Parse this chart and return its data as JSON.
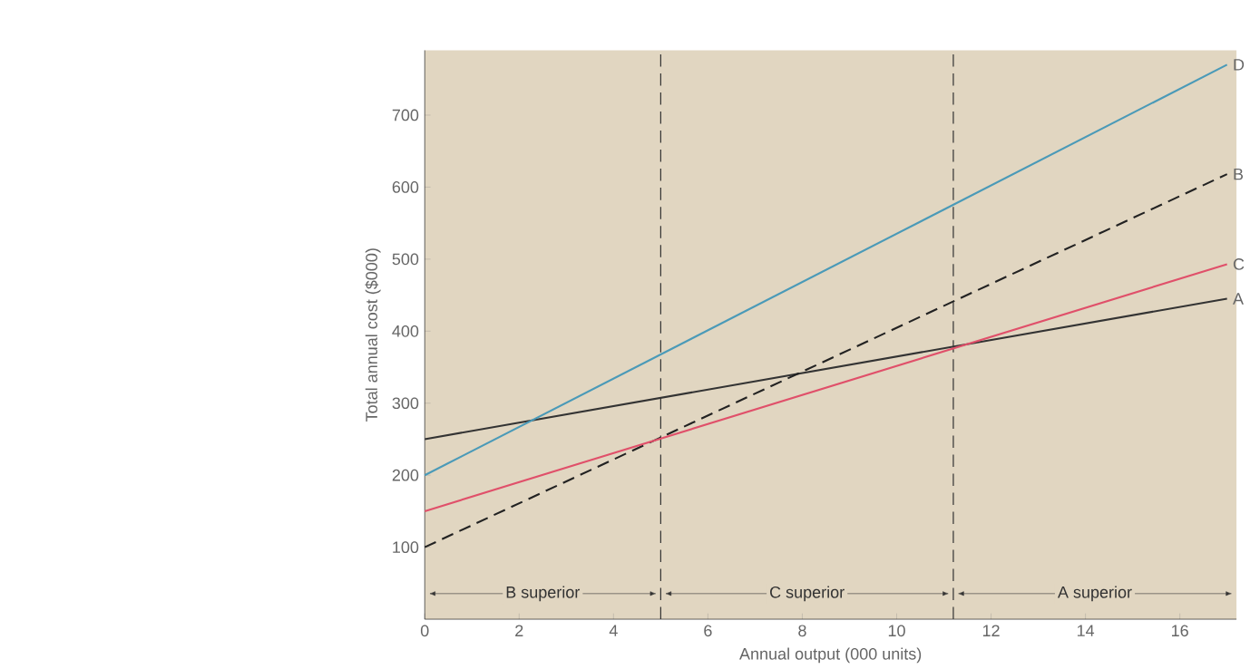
{
  "chart_data": {
    "type": "line",
    "xlabel": "Annual output (000 units)",
    "ylabel": "Total annual cost ($000)",
    "x": [
      0,
      17
    ],
    "series": [
      {
        "name": "A",
        "color": "#333333",
        "values": [
          250,
          445
        ],
        "line_style": "solid"
      },
      {
        "name": "B",
        "color": "#222222",
        "values": [
          100,
          618
        ],
        "line_style": "dashed"
      },
      {
        "name": "C",
        "color": "#e0506a",
        "values": [
          150,
          493
        ],
        "line_style": "solid"
      },
      {
        "name": "D",
        "color": "#4a9ab8",
        "values": [
          200,
          770
        ],
        "line_style": "solid"
      }
    ],
    "xlim": [
      0,
      17.2
    ],
    "ylim": [
      0,
      790
    ],
    "xticks": [
      0,
      2,
      4,
      6,
      8,
      10,
      12,
      14,
      16
    ],
    "yticks": [
      100,
      200,
      300,
      400,
      500,
      600,
      700
    ],
    "ref_lines": [
      {
        "axis": "x",
        "value": 5,
        "line_style": "dashed"
      },
      {
        "axis": "x",
        "value": 11.2,
        "line_style": "dashed"
      }
    ],
    "annotations": [
      "B superior",
      "C superior",
      "A superior"
    ],
    "grid": false,
    "marker": "none"
  }
}
